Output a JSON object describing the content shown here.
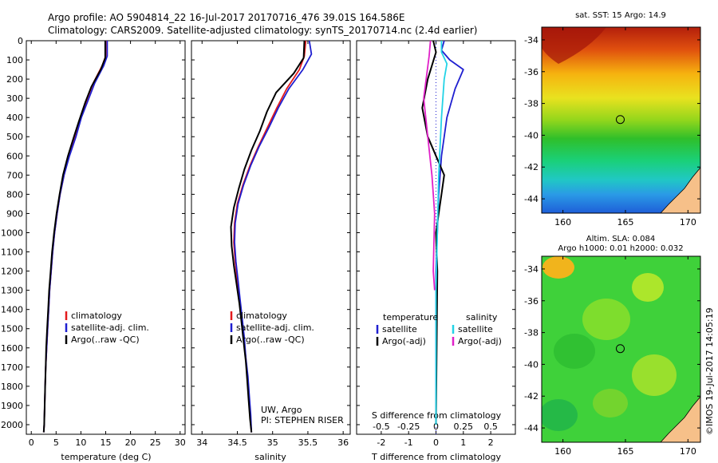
{
  "header": {
    "line1": "Argo profile: AO 5904814_22 16-Jul-2017 20170716_476 39.01S 164.586E",
    "line2": "Climatology: CARS2009. Satellite-adjusted climatology: synTS_20170714.nc (2.4d earlier)"
  },
  "depth_ticks": [
    "0",
    "100",
    "200",
    "300",
    "400",
    "500",
    "600",
    "700",
    "800",
    "900",
    "1000",
    "1100",
    "1200",
    "1300",
    "1400",
    "1500",
    "1600",
    "1700",
    "1800",
    "1900",
    "2000"
  ],
  "depth_values": [
    0,
    100,
    200,
    300,
    400,
    500,
    600,
    700,
    800,
    900,
    1000,
    1100,
    1200,
    1300,
    1400,
    1500,
    1600,
    1700,
    1800,
    1900,
    2000
  ],
  "colors": {
    "clim": "#e41a1c",
    "sat": "#1f1fd0",
    "argo": "#000000",
    "sat_s": "#22d3e6",
    "argo_s": "#e020c8"
  },
  "chart_data": [
    {
      "type": "line",
      "panel": "temperature",
      "xlabel": "temperature (deg C)",
      "xticks": [
        "0",
        "5",
        "10",
        "15",
        "20",
        "25",
        "30"
      ],
      "xlim": [
        -1,
        31
      ],
      "ylim": [
        2050,
        0
      ],
      "legend": [
        "climatology",
        "satellite-adj. clim.",
        "Argo(..raw -QC)"
      ],
      "series": [
        {
          "name": "climatology",
          "color": "#e41a1c",
          "points": [
            [
              15.0,
              0
            ],
            [
              15.0,
              80
            ],
            [
              14.3,
              130
            ],
            [
              12.5,
              220
            ],
            [
              11.3,
              300
            ],
            [
              10.0,
              400
            ],
            [
              8.9,
              500
            ],
            [
              7.6,
              600
            ],
            [
              6.6,
              700
            ],
            [
              5.8,
              800
            ],
            [
              5.2,
              900
            ],
            [
              4.7,
              1000
            ],
            [
              4.3,
              1100
            ],
            [
              4.0,
              1200
            ],
            [
              3.7,
              1300
            ],
            [
              3.5,
              1400
            ],
            [
              3.3,
              1500
            ],
            [
              3.1,
              1600
            ],
            [
              2.9,
              1700
            ],
            [
              2.8,
              1800
            ],
            [
              2.7,
              1900
            ],
            [
              2.6,
              2000
            ],
            [
              2.5,
              2040
            ]
          ]
        },
        {
          "name": "satellite-adj. clim.",
          "color": "#1f1fd0",
          "points": [
            [
              15.3,
              0
            ],
            [
              15.3,
              80
            ],
            [
              14.6,
              130
            ],
            [
              12.8,
              220
            ],
            [
              11.6,
              300
            ],
            [
              10.1,
              400
            ],
            [
              9.0,
              500
            ],
            [
              7.7,
              600
            ],
            [
              6.6,
              700
            ],
            [
              5.8,
              800
            ],
            [
              5.2,
              900
            ],
            [
              4.7,
              1000
            ],
            [
              4.3,
              1100
            ],
            [
              4.0,
              1200
            ],
            [
              3.7,
              1300
            ],
            [
              3.5,
              1400
            ],
            [
              3.3,
              1500
            ],
            [
              3.1,
              1600
            ],
            [
              2.9,
              1700
            ],
            [
              2.8,
              1800
            ],
            [
              2.7,
              1900
            ],
            [
              2.6,
              2000
            ],
            [
              2.5,
              2040
            ]
          ]
        },
        {
          "name": "Argo(..raw -QC)",
          "color": "#000000",
          "points": [
            [
              14.9,
              0
            ],
            [
              14.9,
              90
            ],
            [
              14.0,
              150
            ],
            [
              12.1,
              240
            ],
            [
              10.9,
              320
            ],
            [
              9.6,
              420
            ],
            [
              8.6,
              500
            ],
            [
              7.4,
              600
            ],
            [
              6.4,
              700
            ],
            [
              5.7,
              800
            ],
            [
              5.1,
              900
            ],
            [
              4.6,
              1000
            ],
            [
              4.2,
              1100
            ],
            [
              3.9,
              1200
            ],
            [
              3.6,
              1300
            ],
            [
              3.4,
              1400
            ],
            [
              3.2,
              1500
            ],
            [
              3.0,
              1600
            ],
            [
              2.9,
              1700
            ],
            [
              2.8,
              1800
            ],
            [
              2.7,
              1900
            ],
            [
              2.6,
              2000
            ],
            [
              2.5,
              2040
            ]
          ]
        }
      ]
    },
    {
      "type": "line",
      "panel": "salinity",
      "xlabel": "salinity",
      "xticks": [
        "34",
        "34.5",
        "35",
        "35.5",
        "36"
      ],
      "xtick_values": [
        34,
        34.5,
        35,
        35.5,
        36
      ],
      "xlim": [
        33.85,
        36.1
      ],
      "ylim": [
        2050,
        0
      ],
      "legend": [
        "climatology",
        "satellite-adj. clim.",
        "Argo(..raw -QC)"
      ],
      "annotation": [
        "UW, Argo",
        "PI: STEPHEN RISER"
      ],
      "series": [
        {
          "name": "climatology",
          "color": "#e41a1c",
          "points": [
            [
              35.47,
              0
            ],
            [
              35.45,
              80
            ],
            [
              35.38,
              150
            ],
            [
              35.2,
              250
            ],
            [
              35.06,
              350
            ],
            [
              34.93,
              450
            ],
            [
              34.8,
              550
            ],
            [
              34.68,
              650
            ],
            [
              34.58,
              750
            ],
            [
              34.5,
              850
            ],
            [
              34.46,
              950
            ],
            [
              34.45,
              1050
            ],
            [
              34.47,
              1150
            ],
            [
              34.5,
              1250
            ],
            [
              34.53,
              1350
            ],
            [
              34.56,
              1450
            ],
            [
              34.59,
              1550
            ],
            [
              34.62,
              1650
            ],
            [
              34.64,
              1750
            ],
            [
              34.66,
              1850
            ],
            [
              34.68,
              1950
            ],
            [
              34.7,
              2040
            ]
          ]
        },
        {
          "name": "satellite-adj. clim.",
          "color": "#1f1fd0",
          "points": [
            [
              35.52,
              0
            ],
            [
              35.55,
              70
            ],
            [
              35.43,
              150
            ],
            [
              35.23,
              250
            ],
            [
              35.08,
              350
            ],
            [
              34.95,
              450
            ],
            [
              34.81,
              550
            ],
            [
              34.69,
              650
            ],
            [
              34.59,
              750
            ],
            [
              34.51,
              850
            ],
            [
              34.47,
              950
            ],
            [
              34.46,
              1050
            ],
            [
              34.48,
              1150
            ],
            [
              34.51,
              1250
            ],
            [
              34.54,
              1350
            ],
            [
              34.57,
              1450
            ],
            [
              34.6,
              1550
            ],
            [
              34.62,
              1650
            ],
            [
              34.65,
              1750
            ],
            [
              34.67,
              1850
            ],
            [
              34.69,
              1950
            ],
            [
              34.7,
              2040
            ]
          ]
        },
        {
          "name": "Argo(..raw -QC)",
          "color": "#000000",
          "points": [
            [
              35.45,
              0
            ],
            [
              35.44,
              90
            ],
            [
              35.3,
              170
            ],
            [
              35.05,
              270
            ],
            [
              34.92,
              370
            ],
            [
              34.82,
              470
            ],
            [
              34.7,
              570
            ],
            [
              34.6,
              670
            ],
            [
              34.52,
              770
            ],
            [
              34.45,
              870
            ],
            [
              34.41,
              970
            ],
            [
              34.42,
              1070
            ],
            [
              34.45,
              1170
            ],
            [
              34.49,
              1270
            ],
            [
              34.53,
              1370
            ],
            [
              34.56,
              1470
            ],
            [
              34.59,
              1570
            ],
            [
              34.62,
              1670
            ],
            [
              34.64,
              1770
            ],
            [
              34.66,
              1870
            ],
            [
              34.68,
              1970
            ],
            [
              34.7,
              2040
            ]
          ]
        }
      ]
    },
    {
      "type": "line",
      "panel": "difference",
      "xlabel": "T difference from climatology",
      "xlabel_top": "S difference from climatology",
      "xticks": [
        "-2",
        "-1",
        "0",
        "1",
        "2"
      ],
      "xtick_values": [
        -2,
        -1,
        0,
        1,
        2
      ],
      "sticks": [
        "-0.5",
        "-0.25",
        "0",
        "0.25",
        "0.5"
      ],
      "xlim": [
        -2.9,
        2.9
      ],
      "ylim": [
        2050,
        0
      ],
      "legend_temperature_title": "temperature",
      "legend_salinity_title": "salinity",
      "legend": [
        "satellite",
        "Argo(-adj)",
        "satellite",
        "Argo(-adj)"
      ],
      "series": [
        {
          "name": "temperature satellite",
          "color": "#1f1fd0",
          "points": [
            [
              0.3,
              0
            ],
            [
              0.2,
              50
            ],
            [
              0.5,
              100
            ],
            [
              1.0,
              150
            ],
            [
              0.7,
              250
            ],
            [
              0.4,
              400
            ],
            [
              0.2,
              600
            ],
            [
              0.1,
              800
            ],
            [
              0.05,
              1000
            ],
            [
              0.0,
              1200
            ],
            [
              0.0,
              1500
            ],
            [
              0.0,
              2000
            ]
          ]
        },
        {
          "name": "temperature Argo(-adj)",
          "color": "#000000",
          "points": [
            [
              -0.1,
              0
            ],
            [
              0.0,
              60
            ],
            [
              -0.3,
              200
            ],
            [
              -0.5,
              350
            ],
            [
              -0.3,
              500
            ],
            [
              0.0,
              600
            ],
            [
              0.3,
              700
            ],
            [
              0.2,
              800
            ],
            [
              0.1,
              900
            ],
            [
              0.0,
              1000
            ],
            [
              0.05,
              1200
            ],
            [
              0.0,
              2000
            ]
          ]
        },
        {
          "name": "salinity satellite",
          "color": "#22d3e6",
          "points": [
            [
              0.2,
              0
            ],
            [
              0.2,
              60
            ],
            [
              0.4,
              120
            ],
            [
              0.3,
              200
            ],
            [
              0.2,
              400
            ],
            [
              0.1,
              700
            ],
            [
              0.05,
              1000
            ],
            [
              0.0,
              1300
            ],
            [
              0.0,
              2000
            ]
          ]
        },
        {
          "name": "salinity Argo(-adj)",
          "color": "#e020c8",
          "points": [
            [
              -0.2,
              0
            ],
            [
              -0.25,
              80
            ],
            [
              -0.45,
              300
            ],
            [
              -0.3,
              500
            ],
            [
              -0.15,
              700
            ],
            [
              -0.05,
              900
            ],
            [
              -0.1,
              1200
            ],
            [
              -0.05,
              1300
            ]
          ]
        }
      ]
    }
  ],
  "maps": [
    {
      "title": "sat. SST: 15 Argo: 14.9",
      "yticks": [
        "-34",
        "-36",
        "-38",
        "-40",
        "-42",
        "-44"
      ],
      "ytick_values": [
        -34,
        -36,
        -38,
        -40,
        -42,
        -44
      ],
      "xticks": [
        "160",
        "165",
        "170"
      ],
      "xtick_values": [
        160,
        165,
        170
      ],
      "lonlim": [
        158.3,
        171.0
      ],
      "latlim": [
        -33.2,
        -44.9
      ],
      "argo_location": [
        164.586,
        -39.01
      ]
    },
    {
      "title": "Altim. SLA: 0.084",
      "subtitle": "Argo h1000: 0.01 h2000: 0.032",
      "yticks": [
        "-34",
        "-36",
        "-38",
        "-40",
        "-42",
        "-44"
      ],
      "ytick_values": [
        -34,
        -36,
        -38,
        -40,
        -42,
        -44
      ],
      "xticks": [
        "160",
        "165",
        "170"
      ],
      "xtick_values": [
        160,
        165,
        170
      ],
      "lonlim": [
        158.3,
        171.0
      ],
      "latlim": [
        -33.2,
        -44.9
      ],
      "argo_location": [
        164.586,
        -39.01
      ]
    }
  ],
  "stamp": "©IMOS 19-Jul-2017 14:05:19"
}
